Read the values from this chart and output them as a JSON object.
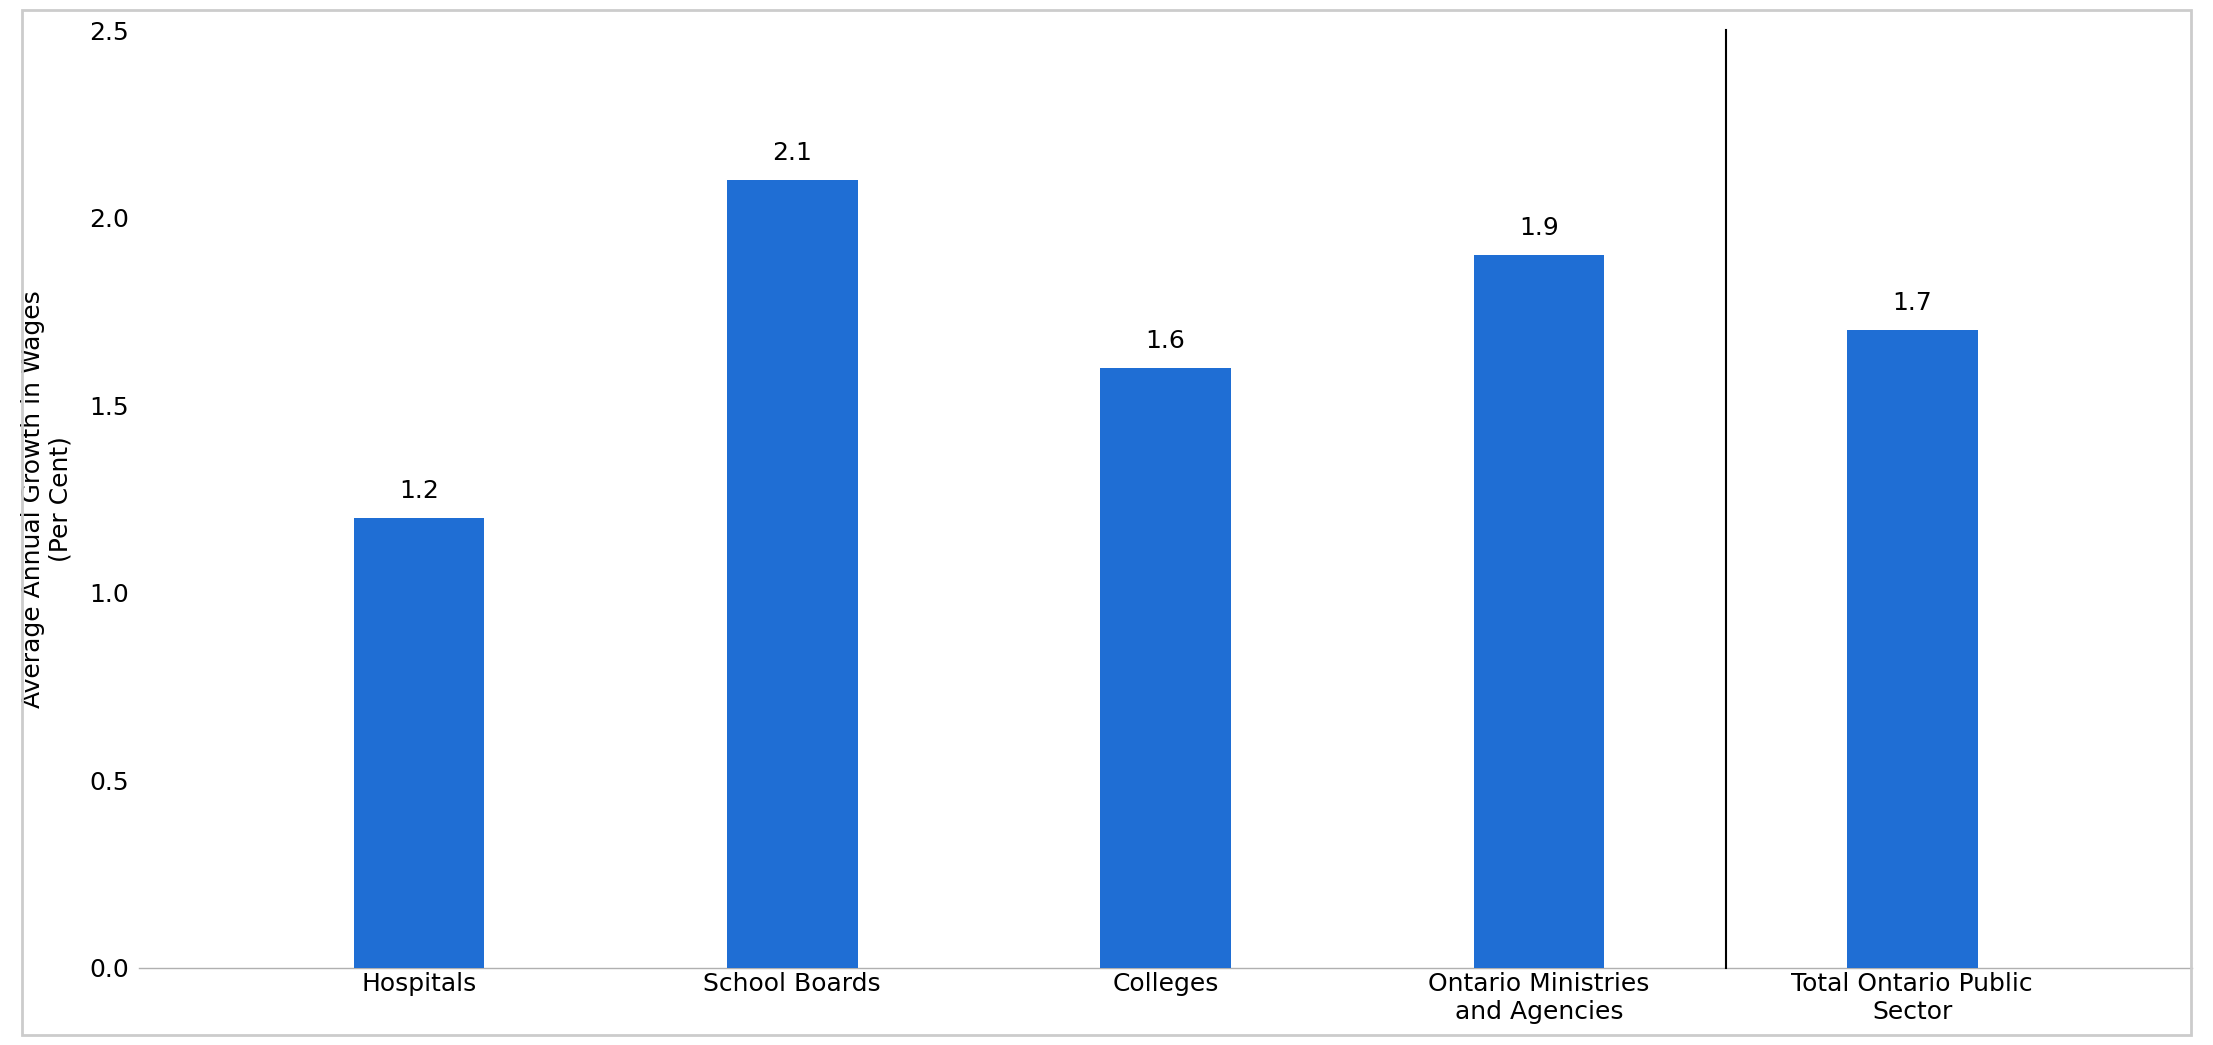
{
  "categories": [
    "Hospitals",
    "School Boards",
    "Colleges",
    "Ontario Ministries\nand Agencies",
    "Total Ontario Public\nSector"
  ],
  "values": [
    1.2,
    2.1,
    1.6,
    1.9,
    1.7
  ],
  "bar_color": "#1F6ED4",
  "ylim": [
    0,
    2.5
  ],
  "yticks": [
    0.0,
    0.5,
    1.0,
    1.5,
    2.0,
    2.5
  ],
  "ylabel": "Average Annual Growth in Wages\n(Per Cent)",
  "ylabel_fontsize": 18,
  "tick_fontsize": 18,
  "label_fontsize": 18,
  "bar_label_fontsize": 18,
  "bar_width": 0.35,
  "figsize": [
    22.13,
    10.45
  ],
  "dpi": 100,
  "border_color": "#cccccc",
  "spine_bottom_color": "#b0b0b0",
  "separator_color": "black",
  "separator_linewidth": 1.5
}
